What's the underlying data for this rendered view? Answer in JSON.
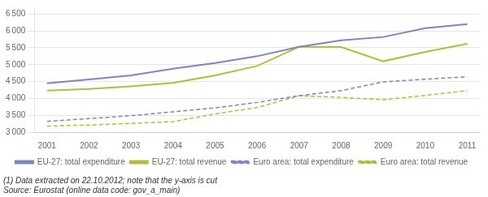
{
  "chart_data": {
    "type": "line",
    "x": [
      2001,
      2002,
      2003,
      2004,
      2005,
      2006,
      2007,
      2008,
      2009,
      2010,
      2011
    ],
    "xlim": [
      2000.7,
      2011.3
    ],
    "xticks": [
      2001,
      2002,
      2003,
      2004,
      2005,
      2006,
      2007,
      2008,
      2009,
      2010,
      2011
    ],
    "ylim": [
      3000,
      6700
    ],
    "yticks": [
      {
        "value": 3000,
        "label": "3 000"
      },
      {
        "value": 3500,
        "label": "3 500"
      },
      {
        "value": 4000,
        "label": "4 000"
      },
      {
        "value": 4500,
        "label": "4 500"
      },
      {
        "value": 5000,
        "label": "5 000"
      },
      {
        "value": 5500,
        "label": "5 500"
      },
      {
        "value": 6000,
        "label": "6 000"
      },
      {
        "value": 6500,
        "label": "6 500"
      }
    ],
    "grid": true,
    "legend": "bottom",
    "annotations": [
      "(1) Data extracted on 22.10.2012; note that the y-axis is cut",
      "Source: Eurostat (online data code: gov_a_main)"
    ],
    "series": [
      {
        "name": "EU-27: total expenditure",
        "color": "#7b86c2",
        "line_style": "solid",
        "values": [
          4450,
          4560,
          4680,
          4880,
          5050,
          5250,
          5530,
          5720,
          5820,
          6080,
          6200
        ]
      },
      {
        "name": "EU-27: total revenue",
        "color": "#b5bd35",
        "line_style": "solid",
        "values": [
          4230,
          4280,
          4360,
          4460,
          4680,
          4960,
          5530,
          5520,
          5100,
          5380,
          5620
        ]
      },
      {
        "name": "Euro area: total expenditure",
        "color": "#7b86c2",
        "line_style": "dashed",
        "values": [
          3320,
          3400,
          3490,
          3600,
          3720,
          3880,
          4080,
          4230,
          4490,
          4570,
          4640
        ]
      },
      {
        "name": "Euro area: total revenue",
        "color": "#b5bd35",
        "line_style": "dashed",
        "values": [
          3180,
          3210,
          3260,
          3310,
          3540,
          3730,
          4080,
          4030,
          3960,
          4090,
          4230
        ]
      }
    ]
  }
}
